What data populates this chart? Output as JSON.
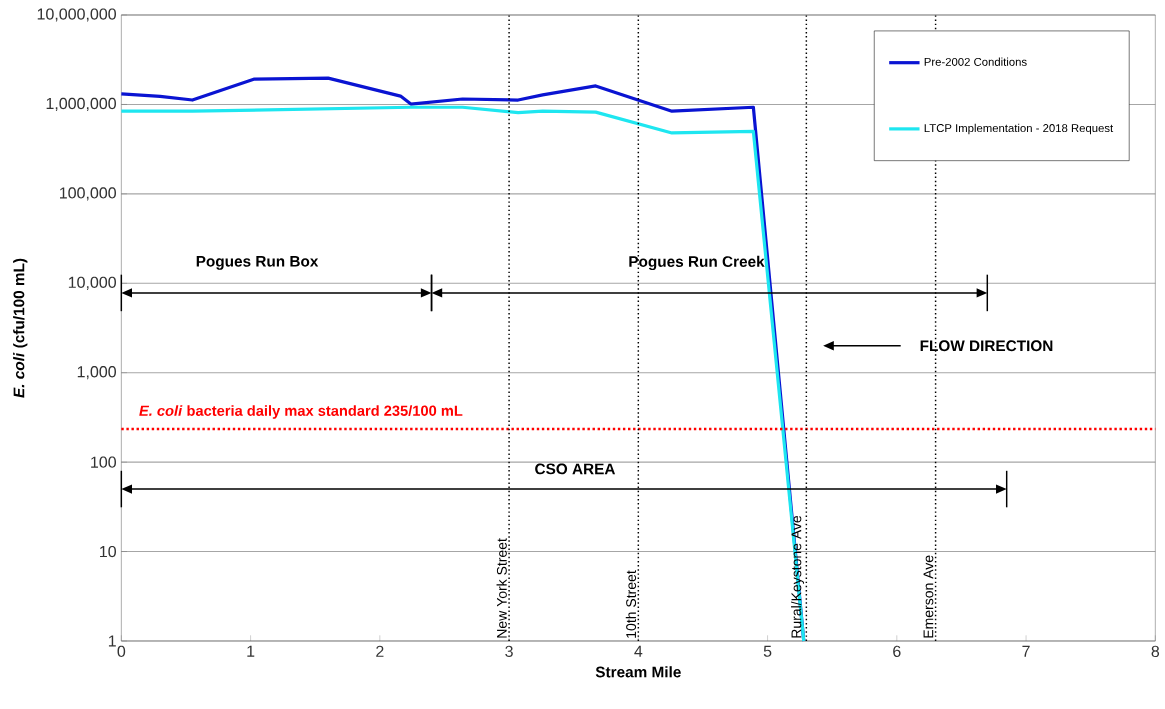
{
  "chart_data": {
    "type": "line",
    "xlabel": "Stream Mile",
    "ylabel": "*E. coli* (cfu/100 mL)",
    "series": [
      {
        "name": "Pre-2002 Conditions",
        "color": "#0a14d2",
        "x": [
          0,
          0.3,
          0.55,
          1.03,
          1.6,
          2.16,
          2.24,
          2.64,
          3.07,
          3.26,
          3.67,
          4.26,
          4.89,
          5.28
        ],
        "values": [
          1310000,
          1230000,
          1120000,
          1920000,
          1970000,
          1240000,
          1010000,
          1150000,
          1120000,
          1280000,
          1610000,
          840000,
          930000,
          1
        ]
      },
      {
        "name": "LTCP Implementation - 2018 Request",
        "color": "#1ee6f0",
        "x": [
          0,
          0.55,
          2.24,
          2.64,
          3.07,
          3.26,
          3.67,
          4.26,
          4.89,
          5.28
        ],
        "values": [
          840000,
          840000,
          930000,
          930000,
          810000,
          840000,
          820000,
          480000,
          500000,
          1
        ]
      }
    ],
    "xlim": [
      0,
      8
    ],
    "xticks": [
      0,
      1,
      2,
      3,
      4,
      5,
      6,
      7,
      8
    ],
    "ylim": [
      1,
      10000000
    ],
    "log": "y",
    "yticks": [
      {
        "value": 1,
        "label": "1"
      },
      {
        "value": 10,
        "label": "10"
      },
      {
        "value": 100,
        "label": "100"
      },
      {
        "value": 1000,
        "label": "1,000"
      },
      {
        "value": 10000,
        "label": "10,000"
      },
      {
        "value": 100000,
        "label": "100,000"
      },
      {
        "value": 1000000,
        "label": "1,000,000"
      },
      {
        "value": 10000000,
        "label": "10,000,000"
      }
    ],
    "grid": "y",
    "legend": "top right",
    "marker": "none",
    "line_style": "solid",
    "ref_lines": [
      {
        "axis": "y",
        "value": 235,
        "label": "*E. coli* bacteria daily max standard 235/100 mL",
        "color": "#ff0000",
        "line_style": "dotted"
      },
      {
        "axis": "x",
        "value": 3,
        "label": "New York Street",
        "color": "#000000",
        "line_style": "dotted"
      },
      {
        "axis": "x",
        "value": 4,
        "label": "10th Street",
        "color": "#000000",
        "line_style": "dotted"
      },
      {
        "axis": "x",
        "value": 5.3,
        "label": "Rural/Keystone Ave",
        "color": "#000000",
        "line_style": "dotted"
      },
      {
        "axis": "x",
        "value": 6.3,
        "label": "Emerson Ave",
        "color": "#000000",
        "line_style": "dotted"
      }
    ],
    "annotations": [
      "Pogues Run Box",
      "Pogues Run Creek",
      "FLOW DIRECTION",
      "CSO AREA"
    ]
  }
}
